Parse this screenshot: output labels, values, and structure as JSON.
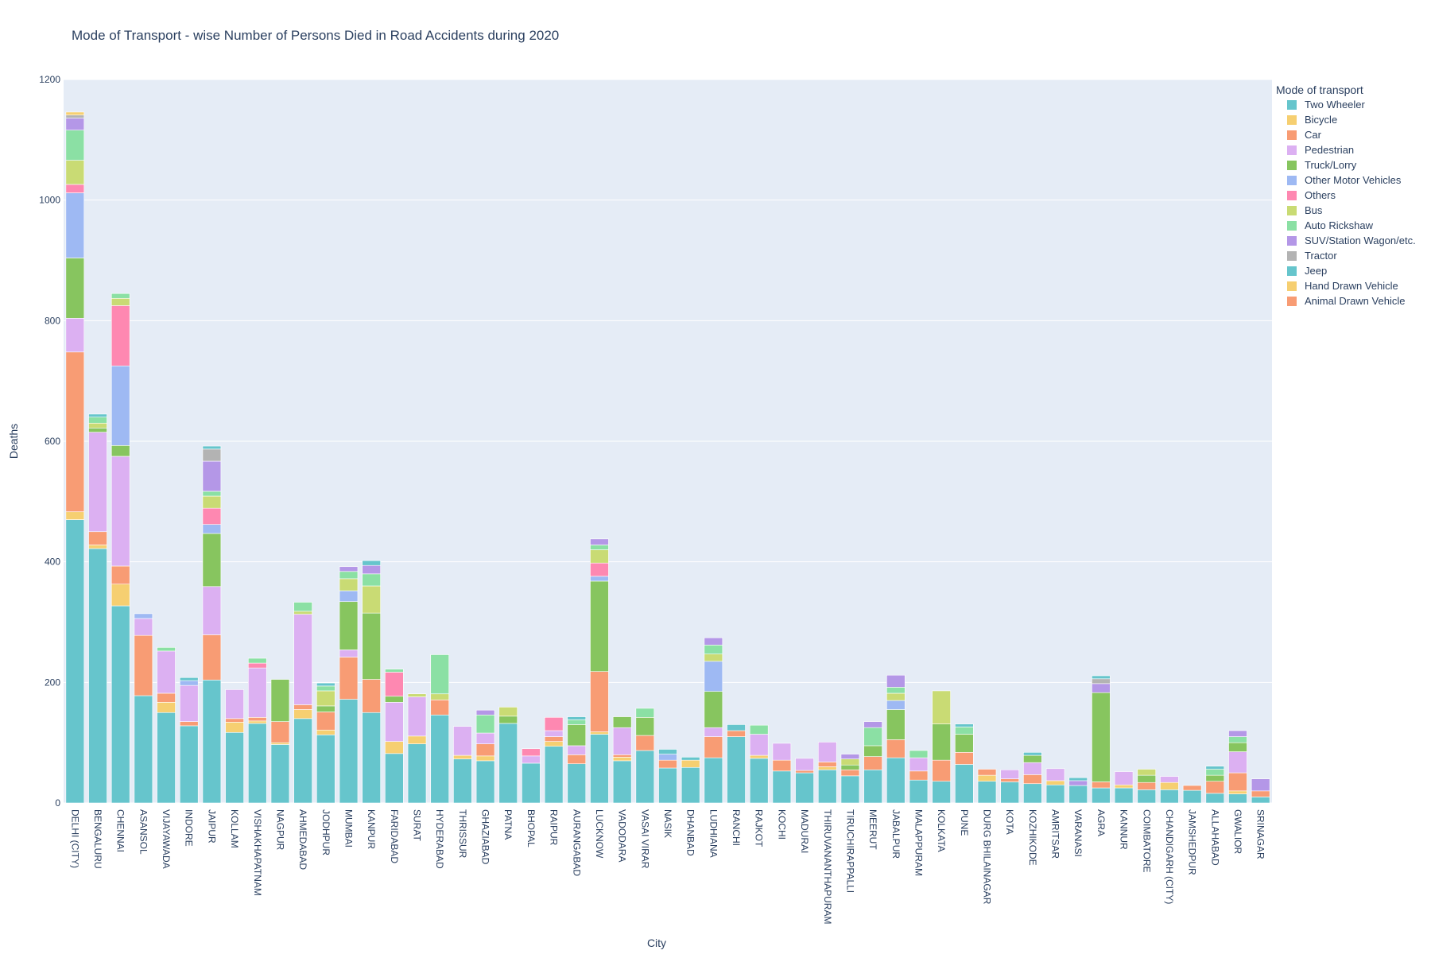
{
  "chart_data": {
    "type": "bar",
    "stacked": true,
    "title": "Mode of Transport - wise Number of Persons Died in Road Accidents during 2020",
    "xlabel": "City",
    "ylabel": "Deaths",
    "ylim": [
      0,
      1200
    ],
    "yticks": [
      0,
      200,
      400,
      600,
      800,
      1000,
      1200
    ],
    "legend_title": "Mode of transport",
    "legend_position": "right",
    "grid": true,
    "categories": [
      "DELHI (CITY)",
      "BENGALURU",
      "CHENNAI",
      "ASANSOL",
      "VIJAYAWADA",
      "INDORE",
      "JAIPUR",
      "KOLLAM",
      "VISHAKHAPATNAM",
      "NAGPUR",
      "AHMEDABAD",
      "JODHPUR",
      "MUMBAI",
      "KANPUR",
      "FARIDABAD",
      "SURAT",
      "HYDERABAD",
      "THRISSUR",
      "GHAZIABAD",
      "PATNA",
      "BHOPAL",
      "RAIPUR",
      "AURANGABAD",
      "LUCKNOW",
      "VADODARA",
      "VASAI VIRAR",
      "NASIK",
      "DHANBAD",
      "LUDHIANA",
      "RANCHI",
      "RAJKOT",
      "KOCHI",
      "MADURAI",
      "THIRUVANANTHAPURAM",
      "TIRUCHIRAPPALLI",
      "MEERUT",
      "JABALPUR",
      "MALAPPURAM",
      "KOLKATA",
      "PUNE",
      "DURG BHILAINAGAR",
      "KOTA",
      "KOZHIKODE",
      "AMRITSAR",
      "VARANASI",
      "AGRA",
      "KANNUR",
      "COIMBATORE",
      "CHANDIGARH (CITY)",
      "JAMSHEDPUR",
      "ALLAHABAD",
      "GWALIOR",
      "SRINAGAR"
    ],
    "series": [
      {
        "name": "Two Wheeler",
        "color": "#66c5cc",
        "values": [
          470,
          422,
          327,
          178,
          150,
          128,
          204,
          117,
          132,
          97,
          140,
          113,
          172,
          150,
          82,
          98,
          146,
          73,
          70,
          132,
          66,
          94,
          65,
          114,
          70,
          87,
          58,
          59,
          75,
          110,
          74,
          53,
          50,
          55,
          45,
          55,
          75,
          38,
          36,
          64,
          36,
          35,
          32,
          30,
          29,
          25,
          25,
          22,
          22,
          21,
          16,
          15,
          10
        ]
      },
      {
        "name": "Bicycle",
        "color": "#f6cf71",
        "values": [
          13,
          6,
          36,
          0,
          17,
          0,
          0,
          17,
          4,
          3,
          15,
          8,
          0,
          0,
          20,
          13,
          0,
          6,
          8,
          0,
          0,
          8,
          0,
          4,
          6,
          0,
          0,
          12,
          0,
          0,
          5,
          0,
          0,
          5,
          0,
          0,
          0,
          0,
          0,
          0,
          10,
          0,
          0,
          7,
          0,
          0,
          5,
          0,
          12,
          0,
          0,
          5,
          0
        ]
      },
      {
        "name": "Car",
        "color": "#f89c74",
        "values": [
          265,
          22,
          30,
          100,
          15,
          7,
          75,
          6,
          6,
          35,
          8,
          30,
          70,
          55,
          0,
          0,
          25,
          0,
          20,
          0,
          0,
          8,
          15,
          100,
          4,
          25,
          13,
          0,
          35,
          10,
          0,
          18,
          4,
          8,
          10,
          22,
          30,
          15,
          35,
          20,
          10,
          5,
          15,
          0,
          0,
          10,
          0,
          12,
          0,
          8,
          20,
          30,
          10
        ]
      },
      {
        "name": "Pedestrian",
        "color": "#dcb0f2",
        "values": [
          56,
          165,
          182,
          28,
          70,
          60,
          80,
          48,
          82,
          0,
          150,
          0,
          12,
          0,
          65,
          65,
          0,
          48,
          18,
          0,
          12,
          10,
          15,
          0,
          45,
          0,
          0,
          0,
          15,
          0,
          35,
          28,
          20,
          33,
          0,
          0,
          0,
          22,
          0,
          0,
          0,
          15,
          20,
          20,
          0,
          0,
          22,
          0,
          10,
          0,
          0,
          35,
          0
        ]
      },
      {
        "name": "Truck/Lorry",
        "color": "#87c55f",
        "values": [
          100,
          7,
          18,
          0,
          0,
          0,
          88,
          0,
          0,
          70,
          0,
          10,
          80,
          110,
          10,
          0,
          0,
          0,
          0,
          12,
          0,
          0,
          35,
          150,
          18,
          30,
          0,
          0,
          60,
          0,
          0,
          0,
          0,
          0,
          8,
          18,
          50,
          0,
          60,
          30,
          0,
          0,
          12,
          0,
          0,
          148,
          0,
          12,
          0,
          0,
          10,
          15,
          0
        ]
      },
      {
        "name": "Other Motor Vehicles",
        "color": "#9eb9f3",
        "values": [
          108,
          0,
          132,
          8,
          0,
          8,
          15,
          0,
          0,
          0,
          0,
          0,
          18,
          0,
          0,
          0,
          0,
          0,
          0,
          0,
          0,
          0,
          0,
          8,
          0,
          0,
          10,
          0,
          50,
          0,
          0,
          0,
          0,
          0,
          0,
          0,
          15,
          0,
          0,
          0,
          0,
          0,
          0,
          0,
          0,
          0,
          0,
          0,
          0,
          0,
          0,
          0,
          0
        ]
      },
      {
        "name": "Others",
        "color": "#fe88b1",
        "values": [
          14,
          0,
          100,
          0,
          0,
          0,
          27,
          0,
          8,
          0,
          0,
          0,
          0,
          0,
          40,
          0,
          0,
          0,
          0,
          0,
          12,
          22,
          0,
          22,
          0,
          0,
          0,
          0,
          0,
          0,
          0,
          0,
          0,
          0,
          0,
          0,
          0,
          0,
          0,
          0,
          0,
          0,
          0,
          0,
          0,
          0,
          0,
          0,
          0,
          0,
          0,
          0,
          0
        ]
      },
      {
        "name": "Bus",
        "color": "#c9db74",
        "values": [
          40,
          8,
          12,
          0,
          0,
          0,
          20,
          0,
          0,
          0,
          5,
          25,
          20,
          45,
          0,
          5,
          10,
          0,
          0,
          15,
          0,
          0,
          0,
          22,
          0,
          0,
          0,
          0,
          12,
          0,
          0,
          0,
          0,
          0,
          10,
          0,
          12,
          0,
          55,
          0,
          0,
          0,
          0,
          0,
          0,
          0,
          0,
          10,
          0,
          0,
          0,
          0,
          0
        ]
      },
      {
        "name": "Auto Rickshaw",
        "color": "#8be0a4",
        "values": [
          50,
          10,
          8,
          0,
          6,
          0,
          8,
          0,
          8,
          0,
          15,
          8,
          12,
          20,
          5,
          0,
          65,
          0,
          30,
          0,
          0,
          0,
          8,
          8,
          0,
          15,
          0,
          0,
          15,
          0,
          15,
          0,
          0,
          0,
          0,
          30,
          10,
          12,
          0,
          12,
          0,
          0,
          0,
          0,
          0,
          0,
          0,
          0,
          0,
          0,
          10,
          10,
          0
        ]
      },
      {
        "name": "SUV/Station Wagon/etc.",
        "color": "#b497e7",
        "values": [
          20,
          0,
          0,
          0,
          0,
          0,
          50,
          0,
          0,
          0,
          0,
          0,
          8,
          14,
          0,
          0,
          0,
          0,
          8,
          0,
          0,
          0,
          0,
          10,
          0,
          0,
          0,
          0,
          12,
          0,
          0,
          0,
          0,
          0,
          8,
          10,
          20,
          0,
          0,
          0,
          0,
          0,
          0,
          0,
          8,
          15,
          0,
          0,
          0,
          0,
          0,
          10,
          20
        ]
      },
      {
        "name": "Tractor",
        "color": "#b3b3b3",
        "values": [
          5,
          0,
          0,
          0,
          0,
          0,
          20,
          0,
          0,
          0,
          0,
          0,
          0,
          0,
          0,
          0,
          0,
          0,
          0,
          0,
          0,
          0,
          0,
          0,
          0,
          0,
          0,
          0,
          0,
          0,
          0,
          0,
          0,
          0,
          0,
          0,
          0,
          0,
          0,
          0,
          0,
          0,
          0,
          0,
          0,
          8,
          0,
          0,
          0,
          0,
          0,
          0,
          0
        ]
      },
      {
        "name": "Jeep",
        "color": "#66c5cc",
        "values": [
          0,
          5,
          0,
          0,
          0,
          5,
          5,
          0,
          0,
          0,
          0,
          5,
          0,
          8,
          0,
          0,
          0,
          0,
          0,
          0,
          0,
          0,
          5,
          0,
          0,
          0,
          8,
          5,
          0,
          10,
          0,
          0,
          0,
          0,
          0,
          0,
          0,
          0,
          0,
          5,
          0,
          0,
          5,
          0,
          5,
          5,
          0,
          0,
          0,
          0,
          5,
          0,
          0
        ]
      },
      {
        "name": "Hand Drawn Vehicle",
        "color": "#f6cf71",
        "values": [
          5,
          0,
          0,
          0,
          0,
          0,
          0,
          0,
          0,
          0,
          0,
          0,
          0,
          0,
          0,
          0,
          0,
          0,
          0,
          0,
          0,
          0,
          0,
          0,
          0,
          0,
          0,
          0,
          0,
          0,
          0,
          0,
          0,
          0,
          0,
          0,
          0,
          0,
          0,
          0,
          0,
          0,
          0,
          0,
          0,
          0,
          0,
          0,
          0,
          0,
          0,
          0,
          0
        ]
      },
      {
        "name": "Animal Drawn Vehicle",
        "color": "#f89c74",
        "values": [
          0,
          0,
          0,
          0,
          0,
          0,
          0,
          0,
          0,
          0,
          0,
          0,
          0,
          0,
          0,
          0,
          0,
          0,
          0,
          0,
          0,
          0,
          0,
          0,
          0,
          0,
          0,
          0,
          0,
          0,
          0,
          0,
          0,
          0,
          0,
          0,
          0,
          0,
          0,
          0,
          0,
          0,
          0,
          0,
          0,
          0,
          0,
          0,
          0,
          0,
          0,
          0,
          0
        ]
      }
    ]
  }
}
